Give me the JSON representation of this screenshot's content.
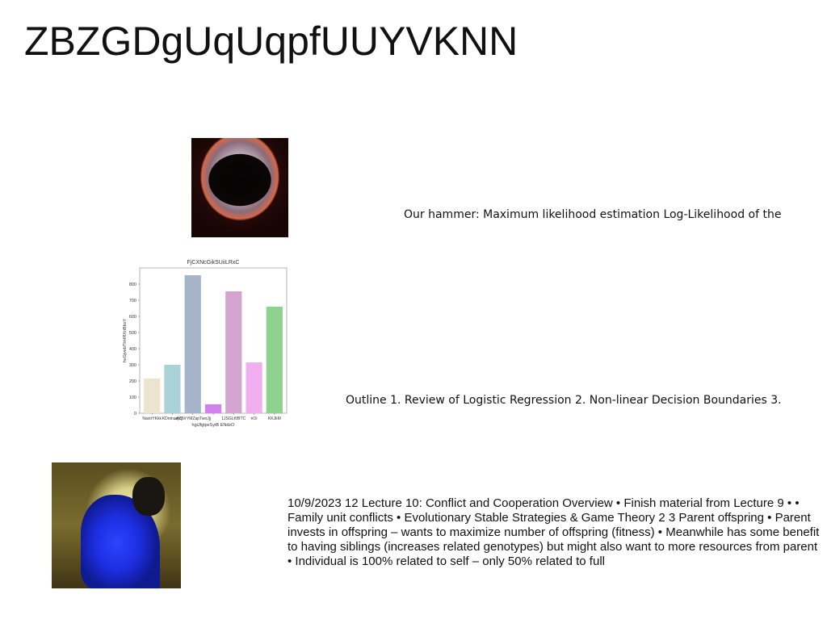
{
  "slide": {
    "title": "ZBZGDgUqUqpfUUYVKNN",
    "text_1": "Our hammer: Maximum likelihood estimation Log-Likelihood of the",
    "text_2": "Outline 1. Review of Logistic Regression 2. Non-linear Decision Boundaries 3.",
    "text_3": "10/9/2023 12 Lecture 10: Conflict and Cooperation Overview • Finish material from Lecture 9 • • Family unit conflicts • Evolutionary Stable Strategies & Game Theory 2 3 Parent offspring • Parent invests in offspring – wants to maximize number of offspring (fitness) • Meanwhile has some benefit to having siblings (increases related genotypes) but might also want to more resources from parent • Individual is 100% related to self – only 50% related to full"
  },
  "chart_data": {
    "type": "bar",
    "title": "FjCXNcGikSUiiLRxC",
    "xlabel": "hgiJfgtpxSytB ENdzO",
    "ylabel": "hxGjvebTlrHRXnBkoY",
    "categories": [
      "NaxtrYKkk",
      "KDntnuzpS",
      "vKQVrYMZapTwoJjj",
      "",
      "1JSGLKfBTC",
      "nOi",
      "KKJkM"
    ],
    "values": [
      215,
      300,
      855,
      55,
      755,
      315,
      660
    ],
    "colors": [
      "#ece4cd",
      "#a9d3d6",
      "#a5b4c9",
      "#d27ff0",
      "#d3a4cf",
      "#f0aef0",
      "#8fd18f"
    ],
    "ylim": [
      0,
      900
    ],
    "yticks": [
      0,
      100,
      200,
      300,
      400,
      500,
      600,
      700,
      800
    ],
    "grid": false,
    "legend": "none"
  }
}
